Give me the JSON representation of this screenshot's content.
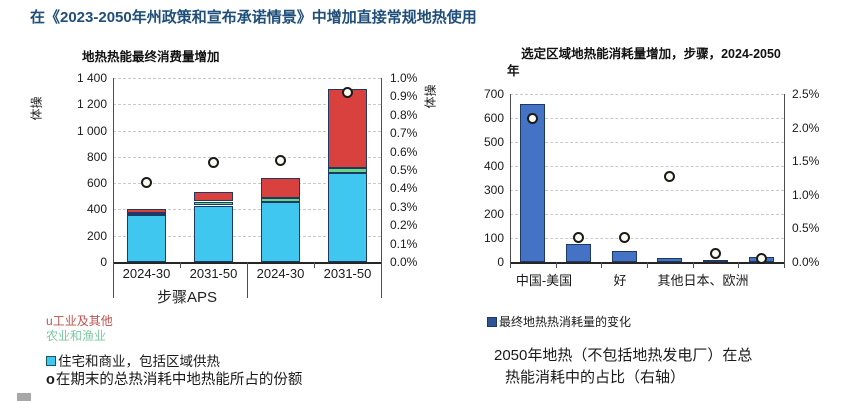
{
  "page_title": "在《2023-2050年州政策和宣布承诺情景》中增加直接常规地热使用",
  "chart_data": [
    {
      "type": "bar",
      "stacked": true,
      "title": "地热热能最终消费量增加",
      "ylabel": "体操",
      "ylim": [
        0,
        1400
      ],
      "ytick_labels": [
        "0",
        "200",
        "400",
        "600",
        "800",
        "1 000",
        "1 200",
        "1 400"
      ],
      "y2lim": [
        0,
        1.0
      ],
      "y2tick_labels": [
        "0.0%",
        "0.1%",
        "0.2%",
        "0.3%",
        "0.4%",
        "0.5%",
        "0.6%",
        "0.7%",
        "0.8%",
        "0.9%",
        "1.0%"
      ],
      "categories": [
        "2024-30",
        "2031-50",
        "2024-30",
        "2031-50"
      ],
      "group_labels": [
        "步骤",
        "APS"
      ],
      "grid": "horizontal-dashed",
      "series": [
        {
          "name": "住宅和商业，包括区域供热",
          "color": "#3fc7f0",
          "values": [
            360,
            430,
            460,
            680
          ]
        },
        {
          "name": "农业和渔业",
          "color": "#63d985",
          "values": [
            13,
            30,
            25,
            35
          ]
        },
        {
          "name": "工业及其他",
          "color": "#d8413e",
          "values": [
            27,
            70,
            155,
            605
          ]
        }
      ],
      "scatter_series": {
        "name": "在期末的总热消耗中地热能所占的份额",
        "axis": "right",
        "values_pct": [
          0.43,
          0.54,
          0.55,
          0.92
        ]
      }
    },
    {
      "type": "bar",
      "stacked": false,
      "title_line1": "选定区域地热能消耗量增加，步骤，2024-2050",
      "title_line2": "年",
      "ylabel": "体操",
      "ylim": [
        0,
        700
      ],
      "ytick_labels": [
        "0",
        "100",
        "200",
        "300",
        "400",
        "500",
        "600",
        "700"
      ],
      "y2lim": [
        0,
        2.5
      ],
      "y2tick_labels": [
        "0.0%",
        "0.5%",
        "1.0%",
        "1.5%",
        "2.0%",
        "2.5%"
      ],
      "xtick_labels": [
        "中国-美国",
        "好",
        "其他日本、欧洲"
      ],
      "grid": "horizontal-dashed",
      "bars": {
        "name": "最终地热热消耗量的变化",
        "values": [
          660,
          75,
          45,
          18,
          8,
          20
        ],
        "colors": [
          "#4472c4",
          "#4472c4",
          "#4472c4",
          "#4472c4",
          "#1a2f55",
          "#4472c4"
        ]
      },
      "scatter_series": {
        "name": "2050年地热（不包括地热发电厂）在总热能消耗中的占比（右轴）",
        "axis": "right",
        "values_pct": [
          2.14,
          0.36,
          0.37,
          1.28,
          0.12,
          0.05
        ]
      }
    }
  ],
  "legend_left": {
    "items": [
      {
        "marker": "u",
        "label": "工业及其他",
        "color": "#c0504d"
      },
      {
        "marker": "",
        "label": "农业和渔业",
        "color": "#7cc9a0"
      },
      {
        "marker": "square",
        "label": "住宅和商业，包括区域供热",
        "color": "#1a1a1a",
        "marker_color": "#3fc7f0"
      },
      {
        "marker": "o",
        "label": "在期末的总热消耗中地热能所占的份额",
        "color": "#1a1a1a"
      }
    ]
  },
  "legend_right": {
    "label": "最终地热热消耗量的变化",
    "marker_color": "#2f5496"
  },
  "caption_right": {
    "line1": "2050年地热（不包括地热发电厂）在总",
    "line2": "热能消耗中的占比（右轴）"
  },
  "colors": {
    "title": "#1f4e7a",
    "axis": "#262626",
    "grid": "#c9c9c9",
    "bar_border": "#1f3864",
    "dot_fill": "#fbfbef",
    "dot_border": "#1a1a1a"
  }
}
